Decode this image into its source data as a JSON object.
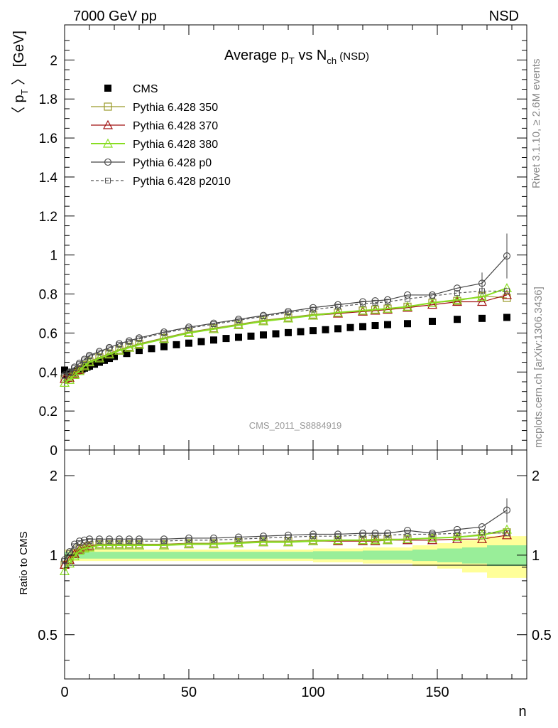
{
  "header": {
    "left": "7000 GeV pp",
    "right": "NSD"
  },
  "side": {
    "rivet": "Rivet 3.1.10, ≥ 2.6M events",
    "mcplots": "mcplots.cern.ch [arXiv:1306.3436]"
  },
  "analysis_id": "CMS_2011_S8884919",
  "chart_data": [
    {
      "type": "scatter",
      "panel": "main",
      "title": {
        "main": "Average p",
        "sub1": "T",
        "mid": " vs N",
        "sub2": "ch",
        "tail": " (NSD)"
      },
      "ylabel": {
        "pre": "〈 p",
        "sub": "T",
        "post": " 〉 [GeV]"
      },
      "xlabel": "n",
      "xlim": [
        0,
        186
      ],
      "ylim": [
        0,
        2.18
      ],
      "x_ticks": [
        "0",
        "50",
        "100",
        "150"
      ],
      "y_ticks": [
        "0",
        "0.2",
        "0.4",
        "0.6",
        "0.8",
        "1",
        "1.2",
        "1.4",
        "1.6",
        "1.8",
        "2"
      ],
      "legend_position": "top-left",
      "legend": [
        "CMS",
        "Pythia 6.428 350",
        "Pythia 6.428 370",
        "Pythia 6.428 380",
        "Pythia 6.428 p0",
        "Pythia 6.428 p2010"
      ],
      "colors": [
        "#000000",
        "#9a9a2a",
        "#a01010",
        "#88dd22",
        "#444444",
        "#555555"
      ],
      "cms": {
        "x": [
          0,
          1,
          2,
          3,
          4,
          5,
          6,
          7,
          8,
          9,
          10,
          12,
          14,
          16,
          18,
          20,
          25,
          30,
          35,
          40,
          45,
          50,
          55,
          60,
          65,
          70,
          75,
          80,
          85,
          90,
          95,
          100,
          105,
          110,
          115,
          120,
          125,
          130,
          138,
          148,
          158,
          168,
          178
        ],
        "y": [
          0.41,
          0.385,
          0.39,
          0.395,
          0.4,
          0.405,
          0.41,
          0.415,
          0.42,
          0.425,
          0.43,
          0.44,
          0.45,
          0.46,
          0.47,
          0.48,
          0.495,
          0.51,
          0.52,
          0.53,
          0.54,
          0.548,
          0.556,
          0.564,
          0.572,
          0.578,
          0.584,
          0.59,
          0.596,
          0.602,
          0.607,
          0.612,
          0.617,
          0.622,
          0.628,
          0.633,
          0.638,
          0.643,
          0.648,
          0.66,
          0.67,
          0.675,
          0.68
        ]
      },
      "x": [
        0,
        2,
        4,
        6,
        8,
        10,
        14,
        18,
        22,
        26,
        30,
        40,
        50,
        60,
        70,
        80,
        90,
        100,
        110,
        120,
        125,
        130,
        138,
        148,
        158,
        168,
        178
      ],
      "series": [
        {
          "name": "Pythia 6.428 350",
          "values": [
            0.365,
            0.375,
            0.395,
            0.415,
            0.435,
            0.455,
            0.475,
            0.495,
            0.515,
            0.53,
            0.545,
            0.575,
            0.605,
            0.625,
            0.645,
            0.665,
            0.68,
            0.695,
            0.705,
            0.715,
            0.72,
            0.725,
            0.735,
            0.755,
            0.765,
            0.79,
            0.78
          ],
          "marker": "square"
        },
        {
          "name": "Pythia 6.428 370",
          "values": [
            0.365,
            0.37,
            0.39,
            0.41,
            0.43,
            0.45,
            0.47,
            0.49,
            0.51,
            0.525,
            0.54,
            0.57,
            0.6,
            0.62,
            0.64,
            0.66,
            0.675,
            0.69,
            0.7,
            0.71,
            0.715,
            0.72,
            0.73,
            0.745,
            0.76,
            0.76,
            0.795
          ],
          "marker": "triangle"
        },
        {
          "name": "Pythia 6.428 380",
          "values": [
            0.345,
            0.36,
            0.385,
            0.405,
            0.43,
            0.45,
            0.47,
            0.49,
            0.51,
            0.525,
            0.54,
            0.57,
            0.6,
            0.62,
            0.64,
            0.66,
            0.675,
            0.69,
            0.705,
            0.715,
            0.72,
            0.725,
            0.735,
            0.755,
            0.77,
            0.785,
            0.83
          ],
          "marker": "triangle"
        },
        {
          "name": "Pythia 6.428 p0",
          "values": [
            0.385,
            0.4,
            0.425,
            0.445,
            0.465,
            0.485,
            0.505,
            0.525,
            0.545,
            0.56,
            0.575,
            0.605,
            0.63,
            0.65,
            0.67,
            0.69,
            0.71,
            0.73,
            0.745,
            0.76,
            0.765,
            0.77,
            0.795,
            0.795,
            0.83,
            0.855,
            0.995
          ],
          "marker": "circle"
        },
        {
          "name": "Pythia 6.428 p2010",
          "values": [
            0.38,
            0.395,
            0.42,
            0.44,
            0.46,
            0.48,
            0.5,
            0.52,
            0.54,
            0.555,
            0.57,
            0.6,
            0.625,
            0.645,
            0.665,
            0.685,
            0.705,
            0.72,
            0.735,
            0.75,
            0.755,
            0.76,
            0.775,
            0.79,
            0.805,
            0.815,
            0.815
          ],
          "marker": "square-small"
        }
      ]
    },
    {
      "type": "scatter",
      "panel": "ratio",
      "ylabel": "Ratio to CMS",
      "xlabel": "n",
      "xlim": [
        0,
        186
      ],
      "ylim": [
        0.34,
        2.5
      ],
      "y_scale": "log",
      "x_ticks": [
        "0",
        "50",
        "100",
        "150"
      ],
      "y_ticks": [
        "0.5",
        "1",
        "2"
      ],
      "x": [
        0,
        2,
        4,
        6,
        8,
        10,
        14,
        18,
        22,
        26,
        30,
        40,
        50,
        60,
        70,
        80,
        90,
        100,
        110,
        120,
        125,
        130,
        138,
        148,
        158,
        168,
        178
      ],
      "band_x": [
        0,
        20,
        50,
        100,
        120,
        140,
        150,
        160,
        170,
        186
      ],
      "band_inner": [
        0.03,
        0.03,
        0.03,
        0.035,
        0.04,
        0.05,
        0.06,
        0.07,
        0.09,
        0.1
      ],
      "band_outer": [
        0.05,
        0.05,
        0.05,
        0.06,
        0.07,
        0.09,
        0.11,
        0.14,
        0.18,
        0.22
      ],
      "series": [
        {
          "name": "Pythia 6.428 350",
          "values": [
            0.92,
            0.97,
            1.02,
            1.06,
            1.08,
            1.09,
            1.1,
            1.1,
            1.1,
            1.1,
            1.1,
            1.1,
            1.11,
            1.11,
            1.12,
            1.13,
            1.13,
            1.14,
            1.14,
            1.14,
            1.15,
            1.15,
            1.15,
            1.16,
            1.17,
            1.2,
            1.22
          ]
        },
        {
          "name": "Pythia 6.428 370",
          "values": [
            0.92,
            0.96,
            1.01,
            1.05,
            1.07,
            1.08,
            1.09,
            1.09,
            1.09,
            1.09,
            1.09,
            1.09,
            1.1,
            1.1,
            1.11,
            1.12,
            1.12,
            1.13,
            1.13,
            1.13,
            1.13,
            1.14,
            1.14,
            1.14,
            1.15,
            1.15,
            1.19
          ]
        },
        {
          "name": "Pythia 6.428 380",
          "values": [
            0.87,
            0.93,
            0.99,
            1.04,
            1.06,
            1.07,
            1.09,
            1.09,
            1.09,
            1.09,
            1.09,
            1.09,
            1.1,
            1.1,
            1.11,
            1.12,
            1.12,
            1.13,
            1.14,
            1.14,
            1.14,
            1.14,
            1.15,
            1.16,
            1.17,
            1.19,
            1.25
          ]
        },
        {
          "name": "Pythia 6.428 p0",
          "values": [
            0.96,
            1.03,
            1.1,
            1.13,
            1.14,
            1.15,
            1.15,
            1.15,
            1.15,
            1.15,
            1.15,
            1.15,
            1.16,
            1.16,
            1.17,
            1.18,
            1.19,
            1.2,
            1.2,
            1.21,
            1.21,
            1.21,
            1.24,
            1.21,
            1.25,
            1.28,
            1.48
          ]
        },
        {
          "name": "Pythia 6.428 p2010",
          "values": [
            0.95,
            1.02,
            1.08,
            1.11,
            1.12,
            1.13,
            1.13,
            1.13,
            1.13,
            1.13,
            1.13,
            1.13,
            1.14,
            1.14,
            1.15,
            1.16,
            1.17,
            1.18,
            1.18,
            1.19,
            1.19,
            1.19,
            1.2,
            1.2,
            1.21,
            1.22,
            1.21
          ]
        }
      ]
    }
  ]
}
